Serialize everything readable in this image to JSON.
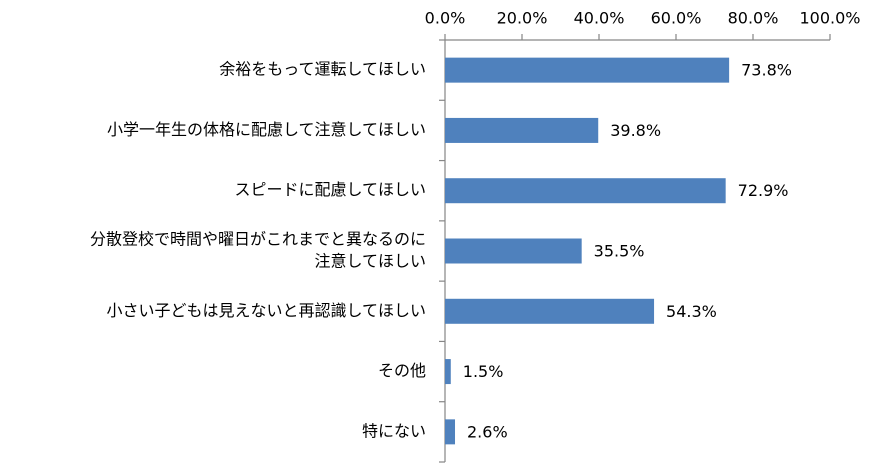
{
  "chart_data": {
    "type": "bar",
    "orientation": "horizontal",
    "categories": [
      [
        "余裕をもって運転してほしい"
      ],
      [
        "小学一年生の体格に配慮して注意してほしい"
      ],
      [
        "スピードに配慮してほしい"
      ],
      [
        "分散登校で時間や曜日がこれまでと異なるのに",
        "注意してほしい"
      ],
      [
        "小さい子どもは見えないと再認識してほしい"
      ],
      [
        "その他"
      ],
      [
        "特にない"
      ]
    ],
    "values": [
      73.8,
      39.8,
      72.9,
      35.5,
      54.3,
      1.5,
      2.6
    ],
    "value_labels": [
      "73.8%",
      "39.8%",
      "72.9%",
      "35.5%",
      "54.3%",
      "1.5%",
      "2.6%"
    ],
    "x_ticks": [
      "0.0%",
      "20.0%",
      "40.0%",
      "60.0%",
      "80.0%",
      "100.0%"
    ],
    "xlim": [
      0,
      100
    ],
    "x_axis_position": "top",
    "grid": false,
    "bar_color": "#4f81bd",
    "axis_color": "#868686"
  }
}
